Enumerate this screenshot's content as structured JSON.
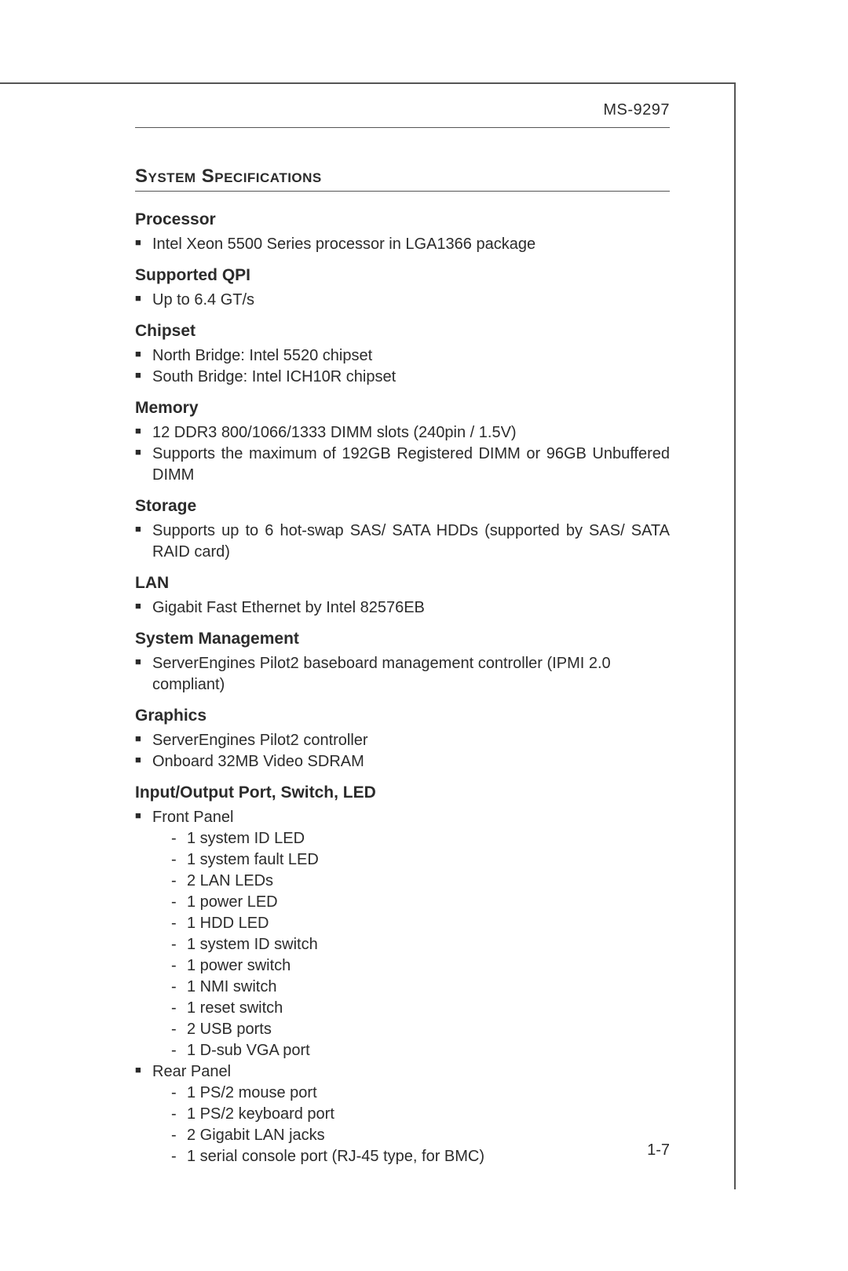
{
  "page": {
    "header_model": "MS-9297",
    "title": "System Specifications",
    "page_number": "1-7"
  },
  "colors": {
    "text": "#2b2b2b",
    "rule": "#555555",
    "background": "#ffffff"
  },
  "typography": {
    "body_fontsize_pt": 15,
    "heading_fontsize_pt": 16,
    "title_fontsize_pt": 18,
    "font_family": "Arial"
  },
  "sections": {
    "processor": {
      "heading": "Processor",
      "items": [
        "Intel Xeon 5500 Series processor in LGA1366 package"
      ]
    },
    "qpi": {
      "heading": "Supported QPI",
      "items": [
        "Up to 6.4 GT/s"
      ]
    },
    "chipset": {
      "heading": "Chipset",
      "items": [
        "North Bridge: Intel 5520 chipset",
        "South Bridge: Intel ICH10R chipset"
      ]
    },
    "memory": {
      "heading": "Memory",
      "items": [
        "12 DDR3 800/1066/1333 DIMM slots (240pin / 1.5V)",
        "Supports the maximum of 192GB Registered DIMM or 96GB Unbuffered DIMM"
      ]
    },
    "storage": {
      "heading": "Storage",
      "items": [
        "Supports up to 6 hot-swap SAS/ SATA HDDs (supported by SAS/ SATA RAID card)"
      ]
    },
    "lan": {
      "heading": "LAN",
      "items": [
        "Gigabit Fast Ethernet by Intel 82576EB"
      ]
    },
    "sysmgmt": {
      "heading": "System Management",
      "items": [
        "ServerEngines Pilot2 baseboard management controller (IPMI 2.0 compliant)"
      ]
    },
    "graphics": {
      "heading": "Graphics",
      "items": [
        "ServerEngines Pilot2 controller",
        "Onboard 32MB Video SDRAM"
      ]
    },
    "io": {
      "heading": "Input/Output Port, Switch, LED",
      "groups": [
        {
          "label": "Front Panel",
          "items": [
            "1 system ID LED",
            "1 system fault LED",
            "2 LAN LEDs",
            "1 power LED",
            "1 HDD LED",
            "1 system ID switch",
            "1 power switch",
            "1 NMI switch",
            "1 reset switch",
            "2 USB ports",
            "1 D-sub VGA port"
          ]
        },
        {
          "label": "Rear Panel",
          "items": [
            "1 PS/2 mouse port",
            "1 PS/2 keyboard port",
            "2 Gigabit LAN jacks",
            "1 serial console port (RJ-45 type, for BMC)"
          ]
        }
      ]
    }
  }
}
